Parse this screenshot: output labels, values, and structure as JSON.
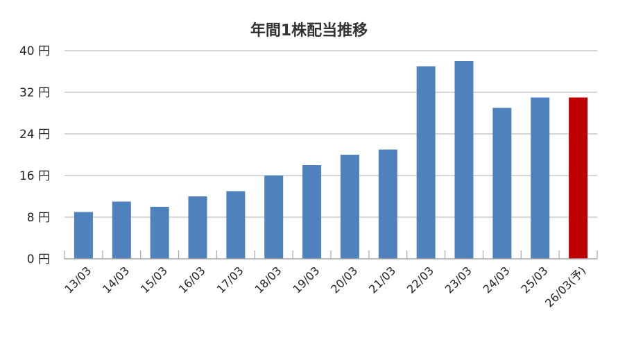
{
  "chart_data": {
    "type": "bar",
    "title": "年間1株配当推移",
    "xlabel": "",
    "ylabel": "",
    "categories": [
      "13/03",
      "14/03",
      "15/03",
      "16/03",
      "17/03",
      "18/03",
      "19/03",
      "20/03",
      "21/03",
      "22/03",
      "23/03",
      "24/03",
      "25/03",
      "26/03(予)"
    ],
    "values": [
      9,
      11,
      10,
      12,
      13,
      16,
      18,
      20,
      21,
      37,
      38,
      29,
      31,
      31
    ],
    "highlight_index": 13,
    "ylim": [
      0,
      40
    ],
    "yticks": [
      0,
      8,
      16,
      24,
      32,
      40
    ],
    "ytick_labels": [
      "0 円",
      "8 円",
      "16 円",
      "24 円",
      "32 円",
      "40 円"
    ],
    "grid": true,
    "colors": {
      "bar": "#4F81BD",
      "highlight": "#C00000",
      "grid": "#C8C8C8",
      "axis": "#A6A6A6"
    }
  }
}
